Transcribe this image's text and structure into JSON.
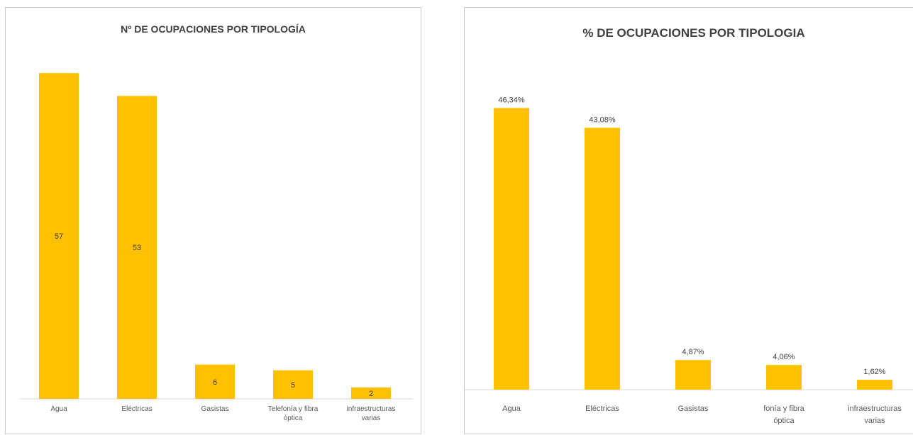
{
  "chart_data": [
    {
      "type": "bar",
      "title": "Nº DE OCUPACIONES POR TIPOLOGÍA",
      "categories": [
        [
          "Agua"
        ],
        [
          "Eléctricas"
        ],
        [
          "Gasistas"
        ],
        [
          "Telefonía y fibra",
          "óptica"
        ],
        [
          "infraestructuras",
          "varias"
        ]
      ],
      "values": [
        57,
        53,
        6,
        5,
        2
      ],
      "data_labels": [
        "57",
        "53",
        "6",
        "5",
        "2"
      ],
      "label_position": "center",
      "ylim": [
        0,
        60
      ],
      "grid": false,
      "bar_color": "#FFC000"
    },
    {
      "type": "bar",
      "title": "% DE OCUPACIONES POR TIPOLOGIA",
      "categories": [
        [
          "Agua"
        ],
        [
          "Eléctricas"
        ],
        [
          "Gasistas"
        ],
        [
          "fonía y fibra",
          "óptica"
        ],
        [
          "infraestructuras",
          "varias"
        ]
      ],
      "values": [
        46.34,
        43.08,
        4.87,
        4.06,
        1.62
      ],
      "data_labels": [
        "46,34%",
        "43,08%",
        "4,87%",
        "4,06%",
        "1,62%"
      ],
      "label_position": "above",
      "ylim": [
        0,
        50
      ],
      "grid": false,
      "bar_color": "#FFC000"
    }
  ]
}
